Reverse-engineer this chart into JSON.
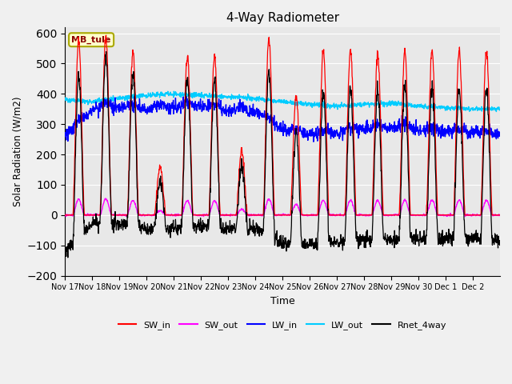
{
  "title": "4-Way Radiometer",
  "xlabel": "Time",
  "ylabel": "Solar Radiation (W/m2)",
  "ylim": [
    -200,
    620
  ],
  "yticks": [
    -200,
    -100,
    0,
    100,
    200,
    300,
    400,
    500,
    600
  ],
  "annotation_label": "MB_tule",
  "legend": [
    "SW_in",
    "SW_out",
    "LW_in",
    "LW_out",
    "Rnet_4way"
  ],
  "colors": {
    "SW_in": "#ff0000",
    "SW_out": "#ff00ff",
    "LW_in": "#0000ff",
    "LW_out": "#00ccff",
    "Rnet_4way": "#000000"
  },
  "background_color": "#e8e8e8",
  "fig_width": 6.4,
  "fig_height": 4.8,
  "dpi": 100
}
